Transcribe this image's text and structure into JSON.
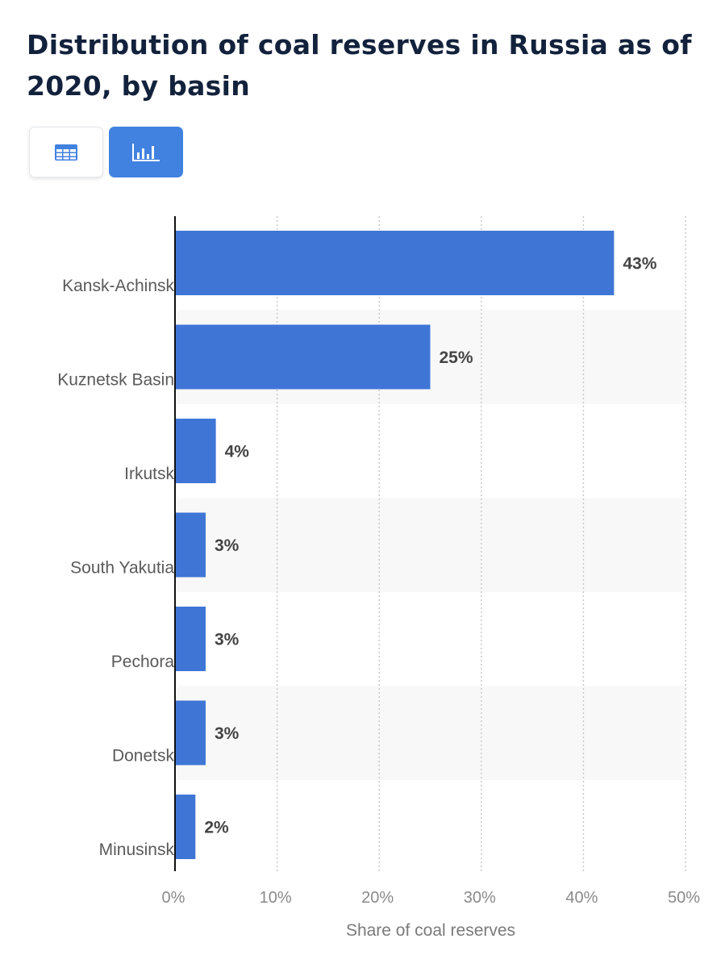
{
  "page": {
    "title": "Distribution of coal reserves in Russia as of 2020, by basin"
  },
  "toolbar": {
    "table_view_icon": "table-grid-icon",
    "chart_view_icon": "bar-chart-icon"
  },
  "colors": {
    "bar": "#3f76d6",
    "accent": "#4181e0",
    "title": "#13223c",
    "band": "#f8f8f8"
  },
  "chart_data": {
    "type": "bar",
    "orientation": "horizontal",
    "categories": [
      "Kansk-Achinsk",
      "Kuznetsk Basin",
      "Irkutsk",
      "South Yakutia",
      "Pechora",
      "Donetsk",
      "Minusinsk"
    ],
    "values": [
      43,
      25,
      4,
      3,
      3,
      3,
      2
    ],
    "data_labels": [
      "43%",
      "25%",
      "4%",
      "3%",
      "3%",
      "3%",
      "2%"
    ],
    "xlabel": "Share of coal reserves",
    "ylabel": "",
    "xlim": [
      0,
      50
    ],
    "x_ticks": [
      0,
      10,
      20,
      30,
      40,
      50
    ],
    "x_tick_labels": [
      "0%",
      "10%",
      "20%",
      "30%",
      "40%",
      "50%"
    ],
    "grid": "vertical dotted",
    "legend": "none"
  }
}
